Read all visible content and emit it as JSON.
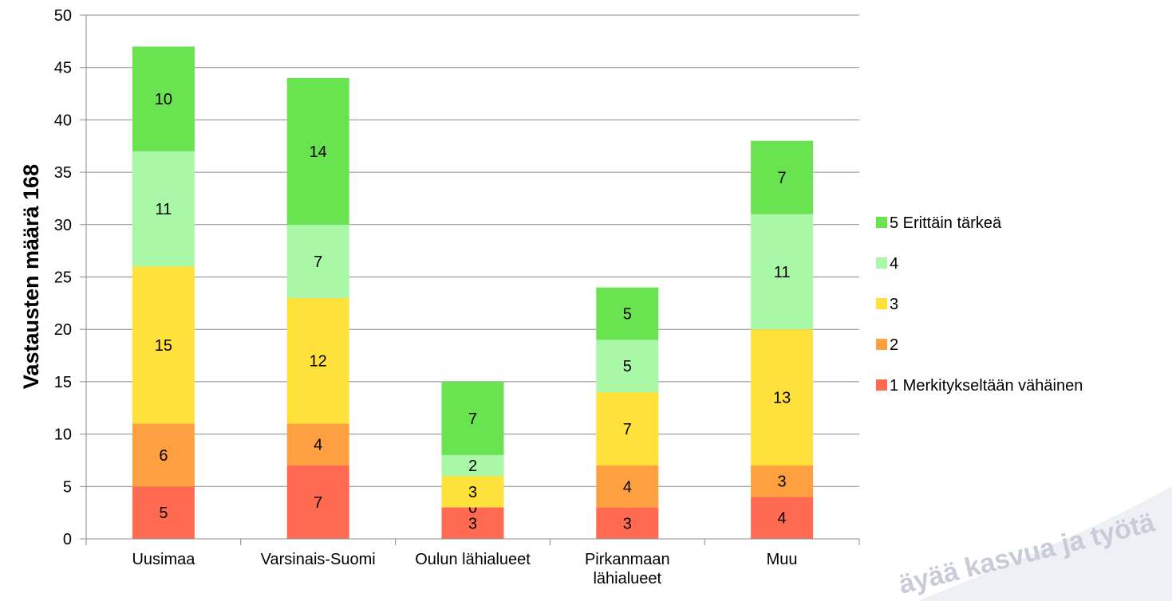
{
  "chart_data": {
    "type": "bar",
    "stacked": true,
    "categories": [
      "Uusimaa",
      "Varsinais-Suomi",
      "Oulun lähialueet",
      "Pirkanmaan lähialueet",
      "Muu"
    ],
    "series": [
      {
        "name": "1 Merkitykseltään vähäinen",
        "color": "#ff6a50",
        "values": [
          5,
          7,
          3,
          3,
          4
        ]
      },
      {
        "name": "2",
        "color": "#ffa040",
        "values": [
          6,
          4,
          0,
          4,
          3
        ]
      },
      {
        "name": "3",
        "color": "#ffe13c",
        "values": [
          15,
          12,
          3,
          7,
          13
        ]
      },
      {
        "name": "4",
        "color": "#a8f8a8",
        "values": [
          11,
          7,
          2,
          5,
          11
        ]
      },
      {
        "name": "5 Erittäin tärkeä",
        "color": "#6ae350",
        "values": [
          10,
          14,
          7,
          5,
          7
        ]
      }
    ],
    "title": "",
    "xlabel": "",
    "ylabel": "Vastausten määrä 168",
    "ylim": [
      0,
      50
    ],
    "yticks": [
      0,
      5,
      10,
      15,
      20,
      25,
      30,
      35,
      40,
      45,
      50
    ],
    "grid": true,
    "legend": "right"
  },
  "watermark": {
    "text": "äyää kasvua ja työtä"
  }
}
